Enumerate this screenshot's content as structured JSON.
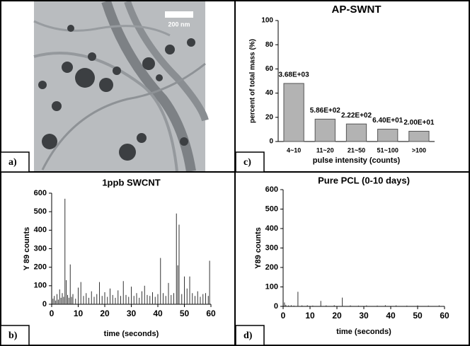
{
  "image_panel": {
    "panel_label": "a)",
    "scale_bar": "200 nm"
  },
  "chart_data": [
    {
      "type": "bar",
      "panel_label": "c)",
      "title": "AP-SWNT",
      "x_label": "pulse intensity (counts)",
      "y_label": "percent of total mass (%)",
      "categories": [
        "4~10",
        "11~20",
        "21~50",
        "51~100",
        ">100"
      ],
      "values": [
        48,
        18.5,
        14.5,
        10.2,
        8.5
      ],
      "annotations": [
        "3.68E+03",
        "5.86E+02",
        "2.22E+02",
        "6.40E+01",
        "2.00E+01"
      ],
      "color": "#b3b3b3",
      "ylim": [
        0,
        100
      ],
      "yticks": [
        0,
        20,
        40,
        60,
        80,
        100
      ]
    },
    {
      "type": "stem",
      "panel_label": "b)",
      "title": "1ppb SWCNT",
      "x_label": "time (seconds)",
      "y_label": "Y 89 counts",
      "color": "#333333",
      "x": [
        0.5,
        1,
        1.5,
        2,
        2.5,
        3,
        3.5,
        4,
        4.5,
        5,
        5.5,
        6,
        6.5,
        7,
        7.5,
        8,
        9,
        10,
        11,
        12,
        13,
        14,
        15,
        16,
        17,
        18,
        19,
        20,
        21,
        22,
        23,
        24,
        25,
        26,
        27,
        28,
        29,
        30,
        31,
        32,
        33,
        34,
        35,
        36,
        37,
        38,
        39,
        40,
        41,
        42,
        43,
        44,
        45,
        46,
        47,
        47.5,
        48,
        49,
        50,
        51,
        52,
        53,
        54,
        55,
        56,
        57,
        58,
        59,
        59.5
      ],
      "values": [
        30,
        45,
        20,
        55,
        25,
        80,
        35,
        60,
        40,
        570,
        130,
        50,
        35,
        215,
        40,
        55,
        30,
        90,
        120,
        45,
        60,
        35,
        70,
        40,
        55,
        120,
        45,
        65,
        40,
        85,
        50,
        35,
        75,
        45,
        125,
        50,
        40,
        95,
        45,
        60,
        35,
        70,
        100,
        50,
        45,
        65,
        40,
        55,
        250,
        60,
        45,
        115,
        50,
        60,
        490,
        210,
        430,
        55,
        150,
        85,
        150,
        60,
        45,
        70,
        40,
        55,
        60,
        45,
        235
      ],
      "xlim": [
        0,
        60
      ],
      "xticks": [
        0,
        10,
        20,
        30,
        40,
        50,
        60
      ],
      "ylim": [
        0,
        600
      ],
      "yticks": [
        0,
        100,
        200,
        300,
        400,
        500,
        600
      ]
    },
    {
      "type": "stem",
      "panel_label": "d)",
      "title": "Pure PCL (0-10 days)",
      "x_label": "time (seconds)",
      "y_label": "Y89 counts",
      "color": "#333333",
      "x": [
        0.5,
        1,
        2,
        3,
        4,
        5.5,
        7,
        9,
        11,
        14,
        16,
        19,
        22,
        25,
        28,
        31,
        35,
        38,
        42,
        46,
        50,
        54,
        58
      ],
      "values": [
        20,
        8,
        5,
        6,
        4,
        75,
        5,
        6,
        4,
        28,
        5,
        6,
        45,
        5,
        4,
        5,
        4,
        6,
        5,
        4,
        5,
        4,
        5
      ],
      "xlim": [
        0,
        60
      ],
      "xticks": [
        0,
        10,
        20,
        30,
        40,
        50,
        60
      ],
      "ylim": [
        0,
        600
      ],
      "yticks": [
        0,
        100,
        200,
        300,
        400,
        500,
        600
      ]
    }
  ]
}
